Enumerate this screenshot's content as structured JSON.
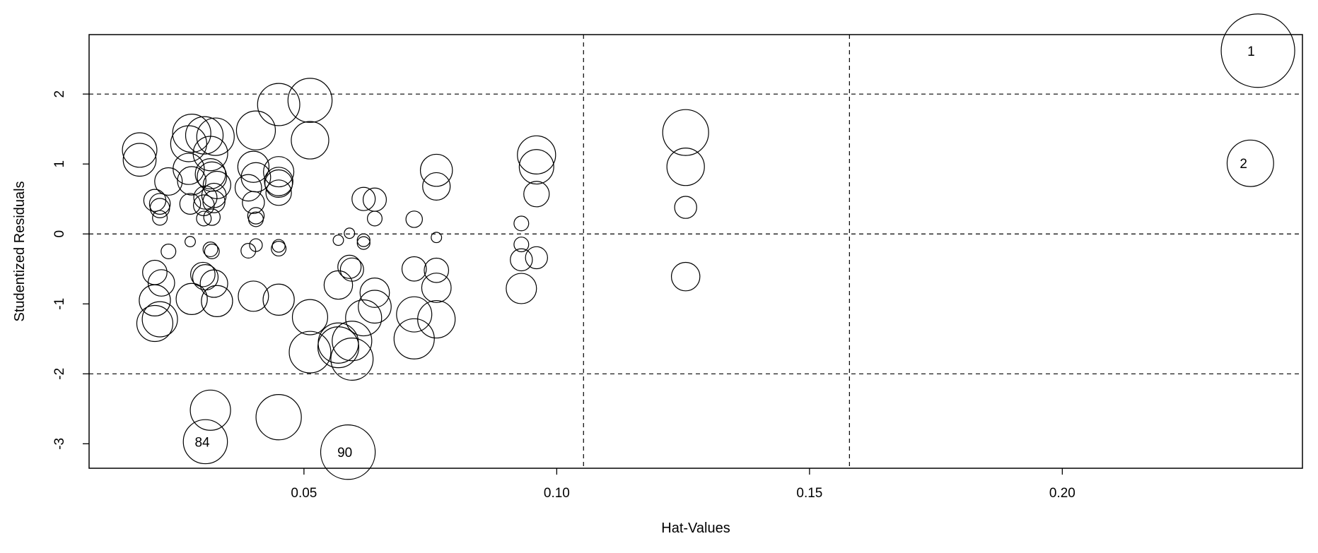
{
  "chart_data": {
    "type": "scatter",
    "title": "",
    "xlabel": "Hat-Values",
    "ylabel": "Studentized Residuals",
    "xlim": [
      0.0075,
      0.2475
    ],
    "ylim": [
      -3.35,
      2.85
    ],
    "xticks": [
      0.05,
      0.1,
      0.15,
      0.2
    ],
    "xtick_labels": [
      "0.05",
      "0.10",
      "0.15",
      "0.20"
    ],
    "yticks": [
      -3,
      -2,
      -1,
      0,
      1,
      2
    ],
    "ytick_labels": [
      "-3",
      "-2",
      "-1",
      "0",
      "1",
      "2"
    ],
    "hlines": [
      -2,
      0,
      2
    ],
    "vlines": [
      0.1053,
      0.1579
    ],
    "grid": false,
    "marker": "open circle, area proportional to Cook's distance",
    "points": [
      {
        "x": 0.2387,
        "y": 2.62,
        "size": 1.0,
        "label": "1"
      },
      {
        "x": 0.2372,
        "y": 1.01,
        "size": 0.4,
        "label": "2"
      },
      {
        "x": 0.0305,
        "y": -2.97,
        "size": 0.36,
        "label": "84"
      },
      {
        "x": 0.0587,
        "y": -3.12,
        "size": 0.55,
        "label": "90"
      },
      {
        "x": 0.0315,
        "y": -2.52,
        "size": 0.3
      },
      {
        "x": 0.045,
        "y": -2.62,
        "size": 0.38
      },
      {
        "x": 0.1255,
        "y": 1.45,
        "size": 0.39
      },
      {
        "x": 0.1255,
        "y": 0.96,
        "size": 0.26
      },
      {
        "x": 0.1255,
        "y": 0.38,
        "size": 0.09
      },
      {
        "x": 0.1255,
        "y": -0.61,
        "size": 0.15
      },
      {
        "x": 0.096,
        "y": 1.13,
        "size": 0.27
      },
      {
        "x": 0.096,
        "y": 0.96,
        "size": 0.22
      },
      {
        "x": 0.096,
        "y": 0.57,
        "size": 0.12
      },
      {
        "x": 0.096,
        "y": -0.34,
        "size": 0.09
      },
      {
        "x": 0.093,
        "y": 0.15,
        "size": 0.04
      },
      {
        "x": 0.093,
        "y": -0.15,
        "size": 0.04
      },
      {
        "x": 0.093,
        "y": -0.37,
        "size": 0.09
      },
      {
        "x": 0.093,
        "y": -0.78,
        "size": 0.17
      },
      {
        "x": 0.0762,
        "y": 0.91,
        "size": 0.19
      },
      {
        "x": 0.0762,
        "y": 0.68,
        "size": 0.14
      },
      {
        "x": 0.0762,
        "y": -0.05,
        "size": 0.02
      },
      {
        "x": 0.0762,
        "y": -0.52,
        "size": 0.11
      },
      {
        "x": 0.0762,
        "y": -0.77,
        "size": 0.16
      },
      {
        "x": 0.0762,
        "y": -1.22,
        "size": 0.26
      },
      {
        "x": 0.0718,
        "y": 0.21,
        "size": 0.05
      },
      {
        "x": 0.0718,
        "y": -0.5,
        "size": 0.11
      },
      {
        "x": 0.0718,
        "y": -1.15,
        "size": 0.23
      },
      {
        "x": 0.0718,
        "y": -1.5,
        "size": 0.3
      },
      {
        "x": 0.064,
        "y": 0.49,
        "size": 0.1
      },
      {
        "x": 0.064,
        "y": 0.22,
        "size": 0.04
      },
      {
        "x": 0.064,
        "y": -0.84,
        "size": 0.16
      },
      {
        "x": 0.064,
        "y": -1.04,
        "size": 0.2
      },
      {
        "x": 0.0618,
        "y": 0.5,
        "size": 0.1
      },
      {
        "x": 0.0618,
        "y": -0.09,
        "size": 0.03
      },
      {
        "x": 0.0618,
        "y": -0.13,
        "size": 0.03
      },
      {
        "x": 0.0618,
        "y": -1.2,
        "size": 0.24
      },
      {
        "x": 0.059,
        "y": 0.01,
        "size": 0.02
      },
      {
        "x": 0.059,
        "y": -0.47,
        "size": 0.1
      },
      {
        "x": 0.0595,
        "y": -0.51,
        "size": 0.1
      },
      {
        "x": 0.0595,
        "y": -1.53,
        "size": 0.29
      },
      {
        "x": 0.0595,
        "y": -1.79,
        "size": 0.33
      },
      {
        "x": 0.0568,
        "y": -0.09,
        "size": 0.02
      },
      {
        "x": 0.0568,
        "y": -0.73,
        "size": 0.15
      },
      {
        "x": 0.0568,
        "y": -1.56,
        "size": 0.3
      },
      {
        "x": 0.0568,
        "y": -1.62,
        "size": 0.31
      },
      {
        "x": 0.0512,
        "y": 1.91,
        "size": 0.36
      },
      {
        "x": 0.0512,
        "y": 1.34,
        "size": 0.26
      },
      {
        "x": 0.0512,
        "y": -1.19,
        "size": 0.23
      },
      {
        "x": 0.0512,
        "y": -1.69,
        "size": 0.32
      },
      {
        "x": 0.045,
        "y": 1.85,
        "size": 0.33
      },
      {
        "x": 0.045,
        "y": 0.89,
        "size": 0.17
      },
      {
        "x": 0.045,
        "y": 0.75,
        "size": 0.15
      },
      {
        "x": 0.045,
        "y": 0.72,
        "size": 0.14
      },
      {
        "x": 0.045,
        "y": 0.59,
        "size": 0.12
      },
      {
        "x": 0.045,
        "y": -0.17,
        "size": 0.03
      },
      {
        "x": 0.045,
        "y": -0.21,
        "size": 0.04
      },
      {
        "x": 0.045,
        "y": -0.94,
        "size": 0.18
      },
      {
        "x": 0.0405,
        "y": 1.48,
        "size": 0.28
      },
      {
        "x": 0.04,
        "y": 0.96,
        "size": 0.18
      },
      {
        "x": 0.0405,
        "y": 0.81,
        "size": 0.16
      },
      {
        "x": 0.04,
        "y": 0.45,
        "size": 0.09
      },
      {
        "x": 0.0405,
        "y": 0.26,
        "size": 0.05
      },
      {
        "x": 0.0405,
        "y": 0.21,
        "size": 0.04
      },
      {
        "x": 0.0405,
        "y": -0.16,
        "size": 0.03
      },
      {
        "x": 0.04,
        "y": -0.89,
        "size": 0.17
      },
      {
        "x": 0.039,
        "y": 0.66,
        "size": 0.13
      },
      {
        "x": 0.039,
        "y": -0.24,
        "size": 0.04
      },
      {
        "x": 0.0325,
        "y": 1.39,
        "size": 0.26
      },
      {
        "x": 0.0315,
        "y": 1.15,
        "size": 0.22
      },
      {
        "x": 0.0315,
        "y": 0.86,
        "size": 0.17
      },
      {
        "x": 0.0318,
        "y": 0.82,
        "size": 0.16
      },
      {
        "x": 0.0328,
        "y": 0.7,
        "size": 0.14
      },
      {
        "x": 0.0322,
        "y": 0.55,
        "size": 0.11
      },
      {
        "x": 0.0322,
        "y": 0.46,
        "size": 0.09
      },
      {
        "x": 0.0318,
        "y": 0.24,
        "size": 0.05
      },
      {
        "x": 0.0315,
        "y": -0.22,
        "size": 0.04
      },
      {
        "x": 0.0318,
        "y": -0.25,
        "size": 0.04
      },
      {
        "x": 0.0322,
        "y": -0.71,
        "size": 0.14
      },
      {
        "x": 0.0328,
        "y": -0.96,
        "size": 0.18
      },
      {
        "x": 0.0303,
        "y": 1.41,
        "size": 0.26
      },
      {
        "x": 0.0305,
        "y": 0.52,
        "size": 0.1
      },
      {
        "x": 0.0302,
        "y": 0.41,
        "size": 0.08
      },
      {
        "x": 0.0302,
        "y": 0.22,
        "size": 0.04
      },
      {
        "x": 0.03,
        "y": -0.58,
        "size": 0.11
      },
      {
        "x": 0.0305,
        "y": -0.62,
        "size": 0.12
      },
      {
        "x": 0.0278,
        "y": 1.44,
        "size": 0.27
      },
      {
        "x": 0.0272,
        "y": 1.29,
        "size": 0.24
      },
      {
        "x": 0.0272,
        "y": 0.93,
        "size": 0.18
      },
      {
        "x": 0.0278,
        "y": 0.76,
        "size": 0.15
      },
      {
        "x": 0.0275,
        "y": 0.43,
        "size": 0.08
      },
      {
        "x": 0.0275,
        "y": -0.11,
        "size": 0.02
      },
      {
        "x": 0.0278,
        "y": -0.93,
        "size": 0.18
      },
      {
        "x": 0.0232,
        "y": 0.75,
        "size": 0.14
      },
      {
        "x": 0.0232,
        "y": -0.25,
        "size": 0.04
      },
      {
        "x": 0.0215,
        "y": 0.43,
        "size": 0.08
      },
      {
        "x": 0.0215,
        "y": 0.37,
        "size": 0.07
      },
      {
        "x": 0.0215,
        "y": 0.23,
        "size": 0.04
      },
      {
        "x": 0.0218,
        "y": -0.7,
        "size": 0.13
      },
      {
        "x": 0.0215,
        "y": -1.22,
        "size": 0.23
      },
      {
        "x": 0.0205,
        "y": 0.48,
        "size": 0.09
      },
      {
        "x": 0.0205,
        "y": -0.55,
        "size": 0.11
      },
      {
        "x": 0.0205,
        "y": -0.95,
        "size": 0.18
      },
      {
        "x": 0.0205,
        "y": -1.28,
        "size": 0.24
      },
      {
        "x": 0.0175,
        "y": 1.2,
        "size": 0.22
      },
      {
        "x": 0.0175,
        "y": 1.06,
        "size": 0.2
      }
    ]
  }
}
